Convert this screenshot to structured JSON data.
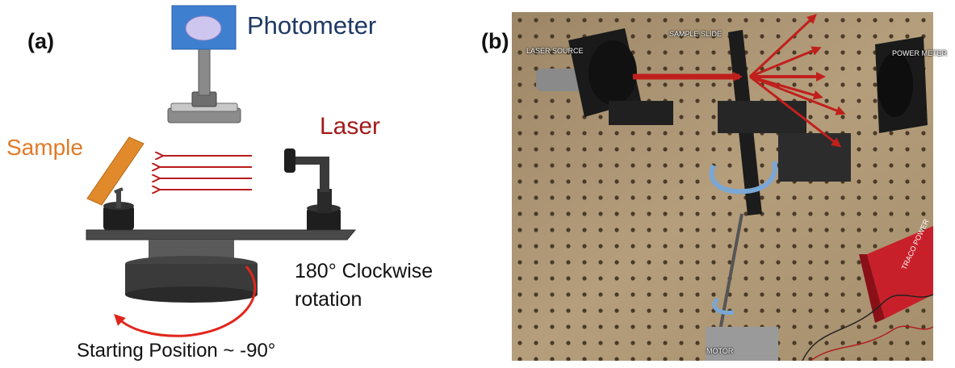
{
  "panel_a": {
    "label": "(a)",
    "photometer_label": "Photometer",
    "laser_label": "Laser",
    "sample_label": "Sample",
    "rotation_line1": "180° Clockwise",
    "rotation_line2": "rotation",
    "start_label": "Starting Position ~ -90°"
  },
  "panel_b": {
    "label": "(b)",
    "laser_source": "LASER SOURCE",
    "sample_slide": "SAMPLE SLIDE",
    "power_meter": "POWER METER",
    "motor": "MOTOR",
    "power_unit_brand": "TRACO POWER"
  },
  "colors": {
    "photometer_text": "#1f3864",
    "laser_text": "#a31a1a",
    "sample_text": "#e07b28",
    "sample_plate": "#e08a2c",
    "arrow_red": "#b71c1c",
    "photometer_box": "#3f7fd0",
    "dark_gray": "#3a3a3a"
  }
}
